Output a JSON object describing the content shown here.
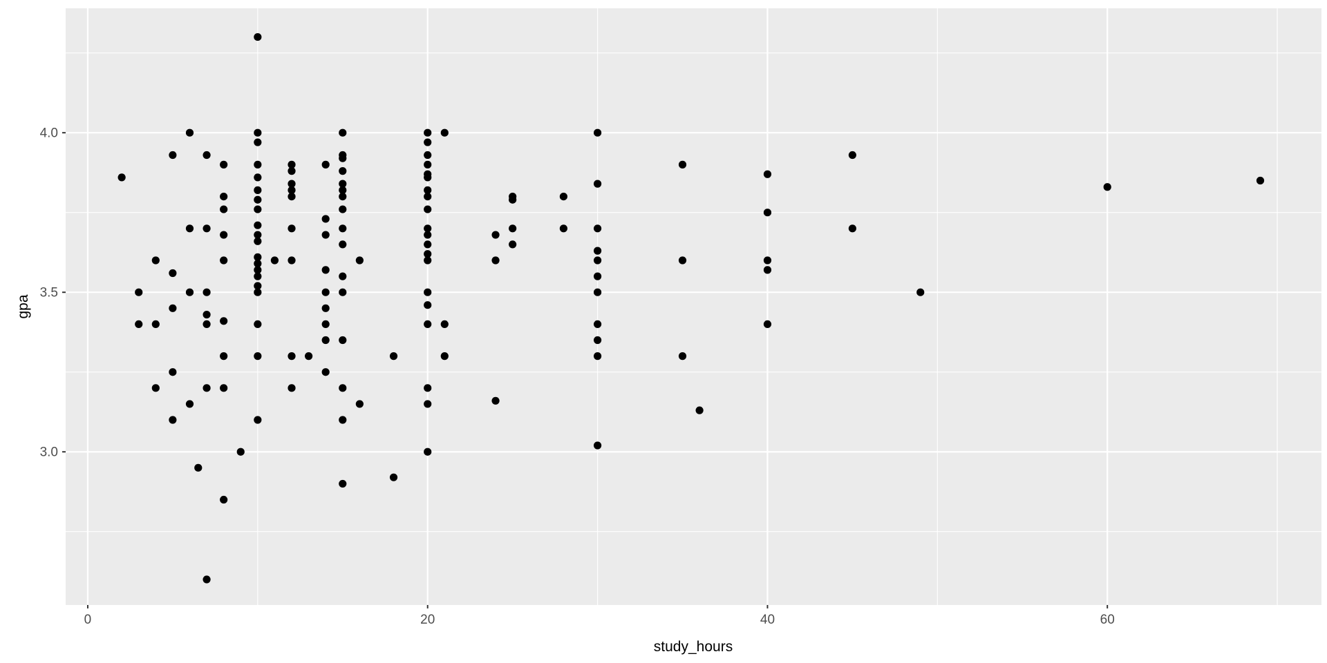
{
  "figure": {
    "background": "#FFFFFF",
    "panel_background": "#EBEBEB",
    "grid_color": "#FFFFFF",
    "point_color": "#000000",
    "tick_mark_color": "#333333",
    "axis_text_color": "#4D4D4D",
    "axis_title_color": "#000000"
  },
  "chart_data": {
    "type": "scatter",
    "title": "",
    "xlabel": "study_hours",
    "ylabel": "gpa",
    "xlim": [
      -1.3,
      72.6
    ],
    "ylim": [
      2.52,
      4.39
    ],
    "x_major_ticks": [
      0,
      20,
      40,
      60
    ],
    "x_tick_labels": [
      "0",
      "20",
      "40",
      "60"
    ],
    "x_minor_ticks": [
      10,
      30,
      50,
      70
    ],
    "y_major_ticks": [
      3.0,
      3.5,
      4.0
    ],
    "y_tick_labels": [
      "3.0",
      "3.5",
      "4.0"
    ],
    "y_minor_ticks": [
      2.75,
      3.25,
      3.75,
      4.25
    ],
    "grid": true,
    "legend_position": "none",
    "point_radius": 5.6,
    "points": [
      [
        2,
        3.86
      ],
      [
        3,
        3.5
      ],
      [
        3,
        3.4
      ],
      [
        4,
        3.6
      ],
      [
        4,
        3.4
      ],
      [
        4,
        3.2
      ],
      [
        5,
        3.93
      ],
      [
        5,
        3.56
      ],
      [
        5,
        3.45
      ],
      [
        5,
        3.25
      ],
      [
        5,
        3.1
      ],
      [
        6,
        4.0
      ],
      [
        6,
        3.7
      ],
      [
        6,
        3.5
      ],
      [
        6,
        3.15
      ],
      [
        6.5,
        2.95
      ],
      [
        7,
        3.93
      ],
      [
        7,
        3.7
      ],
      [
        7,
        3.5
      ],
      [
        7,
        3.43
      ],
      [
        7,
        3.4
      ],
      [
        7,
        3.2
      ],
      [
        7,
        2.6
      ],
      [
        8,
        3.9
      ],
      [
        8,
        3.8
      ],
      [
        8,
        3.76
      ],
      [
        8,
        3.68
      ],
      [
        8,
        3.6
      ],
      [
        8,
        3.41
      ],
      [
        8,
        3.3
      ],
      [
        8,
        3.2
      ],
      [
        8,
        2.85
      ],
      [
        9,
        3.0
      ],
      [
        10,
        4.3
      ],
      [
        10,
        4.0
      ],
      [
        10,
        3.97
      ],
      [
        10,
        3.9
      ],
      [
        10,
        3.86
      ],
      [
        10,
        3.82
      ],
      [
        10,
        3.79
      ],
      [
        10,
        3.76
      ],
      [
        10,
        3.71
      ],
      [
        10,
        3.68
      ],
      [
        10,
        3.66
      ],
      [
        10,
        3.61
      ],
      [
        10,
        3.59
      ],
      [
        10,
        3.57
      ],
      [
        10,
        3.55
      ],
      [
        10,
        3.52
      ],
      [
        10,
        3.5
      ],
      [
        10,
        3.4
      ],
      [
        10,
        3.3
      ],
      [
        10,
        3.1
      ],
      [
        11,
        3.6
      ],
      [
        12,
        3.9
      ],
      [
        12,
        3.88
      ],
      [
        12,
        3.84
      ],
      [
        12,
        3.82
      ],
      [
        12,
        3.8
      ],
      [
        12,
        3.7
      ],
      [
        12,
        3.6
      ],
      [
        12,
        3.3
      ],
      [
        12,
        3.2
      ],
      [
        13,
        3.3
      ],
      [
        14,
        3.9
      ],
      [
        14,
        3.73
      ],
      [
        14,
        3.68
      ],
      [
        14,
        3.57
      ],
      [
        14,
        3.5
      ],
      [
        14,
        3.45
      ],
      [
        14,
        3.4
      ],
      [
        14,
        3.35
      ],
      [
        14,
        3.25
      ],
      [
        15,
        4.0
      ],
      [
        15,
        3.93
      ],
      [
        15,
        3.92
      ],
      [
        15,
        3.88
      ],
      [
        15,
        3.84
      ],
      [
        15,
        3.82
      ],
      [
        15,
        3.8
      ],
      [
        15,
        3.76
      ],
      [
        15,
        3.7
      ],
      [
        15,
        3.65
      ],
      [
        15,
        3.55
      ],
      [
        15,
        3.5
      ],
      [
        15,
        3.35
      ],
      [
        15,
        3.2
      ],
      [
        15,
        3.1
      ],
      [
        15,
        2.9
      ],
      [
        16,
        3.6
      ],
      [
        16,
        3.15
      ],
      [
        18,
        3.3
      ],
      [
        18,
        2.92
      ],
      [
        20,
        4.0
      ],
      [
        20,
        3.97
      ],
      [
        20,
        3.93
      ],
      [
        20,
        3.9
      ],
      [
        20,
        3.87
      ],
      [
        20,
        3.86
      ],
      [
        20,
        3.82
      ],
      [
        20,
        3.8
      ],
      [
        20,
        3.76
      ],
      [
        20,
        3.7
      ],
      [
        20,
        3.68
      ],
      [
        20,
        3.65
      ],
      [
        20,
        3.62
      ],
      [
        20,
        3.6
      ],
      [
        20,
        3.5
      ],
      [
        20,
        3.46
      ],
      [
        20,
        3.4
      ],
      [
        20,
        3.2
      ],
      [
        20,
        3.15
      ],
      [
        20,
        3.0
      ],
      [
        21,
        4.0
      ],
      [
        21,
        3.4
      ],
      [
        21,
        3.3
      ],
      [
        24,
        3.68
      ],
      [
        24,
        3.6
      ],
      [
        24,
        3.16
      ],
      [
        25,
        3.8
      ],
      [
        25,
        3.79
      ],
      [
        25,
        3.7
      ],
      [
        25,
        3.65
      ],
      [
        28,
        3.8
      ],
      [
        28,
        3.7
      ],
      [
        30,
        4.0
      ],
      [
        30,
        3.84
      ],
      [
        30,
        3.7
      ],
      [
        30,
        3.63
      ],
      [
        30,
        3.6
      ],
      [
        30,
        3.55
      ],
      [
        30,
        3.5
      ],
      [
        30,
        3.4
      ],
      [
        30,
        3.35
      ],
      [
        30,
        3.3
      ],
      [
        30,
        3.02
      ],
      [
        35,
        3.9
      ],
      [
        35,
        3.6
      ],
      [
        35,
        3.3
      ],
      [
        36,
        3.13
      ],
      [
        40,
        3.87
      ],
      [
        40,
        3.75
      ],
      [
        40,
        3.6
      ],
      [
        40,
        3.57
      ],
      [
        40,
        3.4
      ],
      [
        45,
        3.93
      ],
      [
        45,
        3.7
      ],
      [
        49,
        3.5
      ],
      [
        60,
        3.83
      ],
      [
        69,
        3.85
      ]
    ]
  }
}
